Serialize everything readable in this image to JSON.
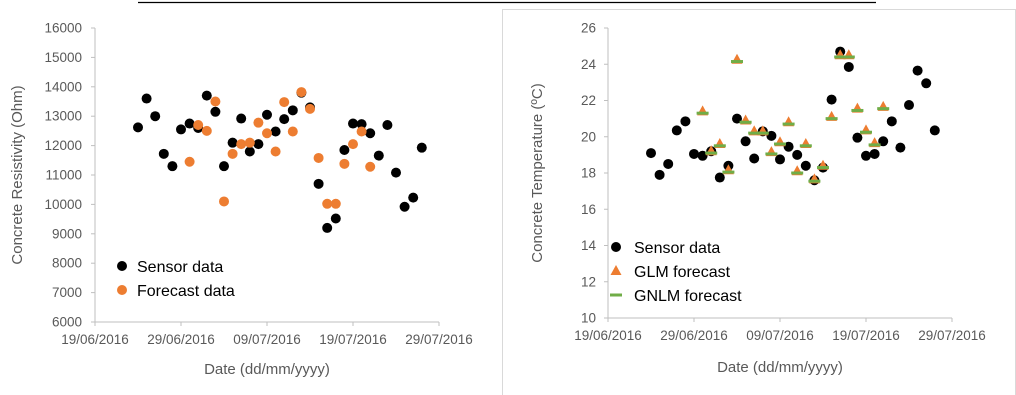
{
  "chart_data": [
    {
      "type": "scatter",
      "xlabel": "Date (dd/mm/yyyy)",
      "ylabel": "Concrete Resistivity (Ohm)",
      "xlim": [
        "2016-06-19",
        "2016-07-29"
      ],
      "ylim": [
        6000,
        16000
      ],
      "y_ticks": [
        6000,
        7000,
        8000,
        9000,
        10000,
        11000,
        12000,
        13000,
        14000,
        15000,
        16000
      ],
      "x_ticks": [
        "19/06/2016",
        "29/06/2016",
        "09/07/2016",
        "19/07/2016",
        "29/07/2016"
      ],
      "legend_position": "bottom-left",
      "grid": false,
      "series": [
        {
          "name": "Sensor data",
          "marker": "circle",
          "color": "#000000",
          "points": [
            [
              "2016-06-24",
              12620
            ],
            [
              "2016-06-25",
              13600
            ],
            [
              "2016-06-26",
              13000
            ],
            [
              "2016-06-27",
              11720
            ],
            [
              "2016-06-28",
              11300
            ],
            [
              "2016-06-29",
              12550
            ],
            [
              "2016-06-30",
              12750
            ],
            [
              "2016-07-01",
              12600
            ],
            [
              "2016-07-02",
              13700
            ],
            [
              "2016-07-03",
              13150
            ],
            [
              "2016-07-04",
              11300
            ],
            [
              "2016-07-05",
              12100
            ],
            [
              "2016-07-06",
              12920
            ],
            [
              "2016-07-07",
              11800
            ],
            [
              "2016-07-08",
              12050
            ],
            [
              "2016-07-09",
              13050
            ],
            [
              "2016-07-10",
              12480
            ],
            [
              "2016-07-11",
              12900
            ],
            [
              "2016-07-12",
              13200
            ],
            [
              "2016-07-13",
              13800
            ],
            [
              "2016-07-14",
              13300
            ],
            [
              "2016-07-15",
              10700
            ],
            [
              "2016-07-16",
              9200
            ],
            [
              "2016-07-17",
              9520
            ],
            [
              "2016-07-18",
              11850
            ],
            [
              "2016-07-19",
              12750
            ],
            [
              "2016-07-20",
              12730
            ],
            [
              "2016-07-21",
              12420
            ],
            [
              "2016-07-22",
              11660
            ],
            [
              "2016-07-23",
              12700
            ],
            [
              "2016-07-24",
              11080
            ],
            [
              "2016-07-25",
              9920
            ],
            [
              "2016-07-26",
              10230
            ],
            [
              "2016-07-27",
              11930
            ]
          ]
        },
        {
          "name": "Forecast data",
          "marker": "circle",
          "color": "#ED7D31",
          "points": [
            [
              "2016-06-30",
              11450
            ],
            [
              "2016-07-01",
              12700
            ],
            [
              "2016-07-02",
              12500
            ],
            [
              "2016-07-03",
              13500
            ],
            [
              "2016-07-04",
              10100
            ],
            [
              "2016-07-05",
              11720
            ],
            [
              "2016-07-06",
              12050
            ],
            [
              "2016-07-07",
              12100
            ],
            [
              "2016-07-08",
              12780
            ],
            [
              "2016-07-09",
              12420
            ],
            [
              "2016-07-10",
              11800
            ],
            [
              "2016-07-11",
              13480
            ],
            [
              "2016-07-12",
              12480
            ],
            [
              "2016-07-13",
              13820
            ],
            [
              "2016-07-14",
              13250
            ],
            [
              "2016-07-15",
              11580
            ],
            [
              "2016-07-16",
              10020
            ],
            [
              "2016-07-17",
              10020
            ],
            [
              "2016-07-18",
              11380
            ],
            [
              "2016-07-19",
              12050
            ],
            [
              "2016-07-20",
              12480
            ],
            [
              "2016-07-21",
              11280
            ]
          ]
        }
      ]
    },
    {
      "type": "scatter",
      "xlabel": "Date (dd/mm/yyyy)",
      "ylabel": "Concrete Temperature (ºC)",
      "xlim": [
        "2016-06-19",
        "2016-07-29"
      ],
      "ylim": [
        10,
        26
      ],
      "y_ticks": [
        10,
        12,
        14,
        16,
        18,
        20,
        22,
        24,
        26
      ],
      "x_ticks": [
        "19/06/2016",
        "29/06/2016",
        "09/07/2016",
        "19/07/2016",
        "29/07/2016"
      ],
      "legend_position": "bottom-left",
      "grid": false,
      "series": [
        {
          "name": "Sensor data",
          "marker": "circle",
          "color": "#000000",
          "points": [
            [
              "2016-06-24",
              19.1
            ],
            [
              "2016-06-25",
              17.9
            ],
            [
              "2016-06-26",
              18.5
            ],
            [
              "2016-06-27",
              20.35
            ],
            [
              "2016-06-28",
              20.85
            ],
            [
              "2016-06-29",
              19.05
            ],
            [
              "2016-06-30",
              18.95
            ],
            [
              "2016-07-01",
              19.2
            ],
            [
              "2016-07-02",
              17.75
            ],
            [
              "2016-07-03",
              18.4
            ],
            [
              "2016-07-04",
              21.0
            ],
            [
              "2016-07-05",
              19.75
            ],
            [
              "2016-07-06",
              18.8
            ],
            [
              "2016-07-07",
              20.3
            ],
            [
              "2016-07-08",
              20.05
            ],
            [
              "2016-07-09",
              18.75
            ],
            [
              "2016-07-10",
              19.45
            ],
            [
              "2016-07-11",
              19.0
            ],
            [
              "2016-07-12",
              18.4
            ],
            [
              "2016-07-13",
              17.6
            ],
            [
              "2016-07-14",
              18.3
            ],
            [
              "2016-07-15",
              22.05
            ],
            [
              "2016-07-16",
              24.7
            ],
            [
              "2016-07-17",
              23.85
            ],
            [
              "2016-07-18",
              19.95
            ],
            [
              "2016-07-19",
              18.95
            ],
            [
              "2016-07-20",
              19.05
            ],
            [
              "2016-07-21",
              19.75
            ],
            [
              "2016-07-22",
              20.85
            ],
            [
              "2016-07-23",
              19.4
            ],
            [
              "2016-07-24",
              21.75
            ],
            [
              "2016-07-25",
              23.65
            ],
            [
              "2016-07-26",
              22.95
            ],
            [
              "2016-07-27",
              20.35
            ]
          ]
        },
        {
          "name": "GLM forecast",
          "marker": "triangle",
          "color": "#ED7D31",
          "points": [
            [
              "2016-06-30",
              21.4
            ],
            [
              "2016-07-01",
              19.2
            ],
            [
              "2016-07-02",
              19.6
            ],
            [
              "2016-07-03",
              18.15
            ],
            [
              "2016-07-04",
              24.25
            ],
            [
              "2016-07-05",
              20.9
            ],
            [
              "2016-07-06",
              20.3
            ],
            [
              "2016-07-07",
              20.3
            ],
            [
              "2016-07-08",
              19.15
            ],
            [
              "2016-07-09",
              19.7
            ],
            [
              "2016-07-10",
              20.8
            ],
            [
              "2016-07-11",
              18.1
            ],
            [
              "2016-07-12",
              19.6
            ],
            [
              "2016-07-13",
              17.65
            ],
            [
              "2016-07-14",
              18.4
            ],
            [
              "2016-07-15",
              21.1
            ],
            [
              "2016-07-16",
              24.5
            ],
            [
              "2016-07-17",
              24.5
            ],
            [
              "2016-07-18",
              21.55
            ],
            [
              "2016-07-19",
              20.35
            ],
            [
              "2016-07-20",
              19.65
            ],
            [
              "2016-07-21",
              21.65
            ]
          ]
        },
        {
          "name": "GNLM forecast",
          "marker": "dash",
          "color": "#70AD47",
          "points": [
            [
              "2016-06-30",
              21.3
            ],
            [
              "2016-07-01",
              19.1
            ],
            [
              "2016-07-02",
              19.5
            ],
            [
              "2016-07-03",
              18.05
            ],
            [
              "2016-07-04",
              24.15
            ],
            [
              "2016-07-05",
              20.8
            ],
            [
              "2016-07-06",
              20.2
            ],
            [
              "2016-07-07",
              20.2
            ],
            [
              "2016-07-08",
              19.05
            ],
            [
              "2016-07-09",
              19.6
            ],
            [
              "2016-07-10",
              20.7
            ],
            [
              "2016-07-11",
              18.0
            ],
            [
              "2016-07-12",
              19.5
            ],
            [
              "2016-07-13",
              17.55
            ],
            [
              "2016-07-14",
              18.3
            ],
            [
              "2016-07-15",
              21.0
            ],
            [
              "2016-07-16",
              24.4
            ],
            [
              "2016-07-17",
              24.4
            ],
            [
              "2016-07-18",
              21.45
            ],
            [
              "2016-07-19",
              20.25
            ],
            [
              "2016-07-20",
              19.55
            ],
            [
              "2016-07-21",
              21.55
            ]
          ]
        }
      ]
    }
  ]
}
